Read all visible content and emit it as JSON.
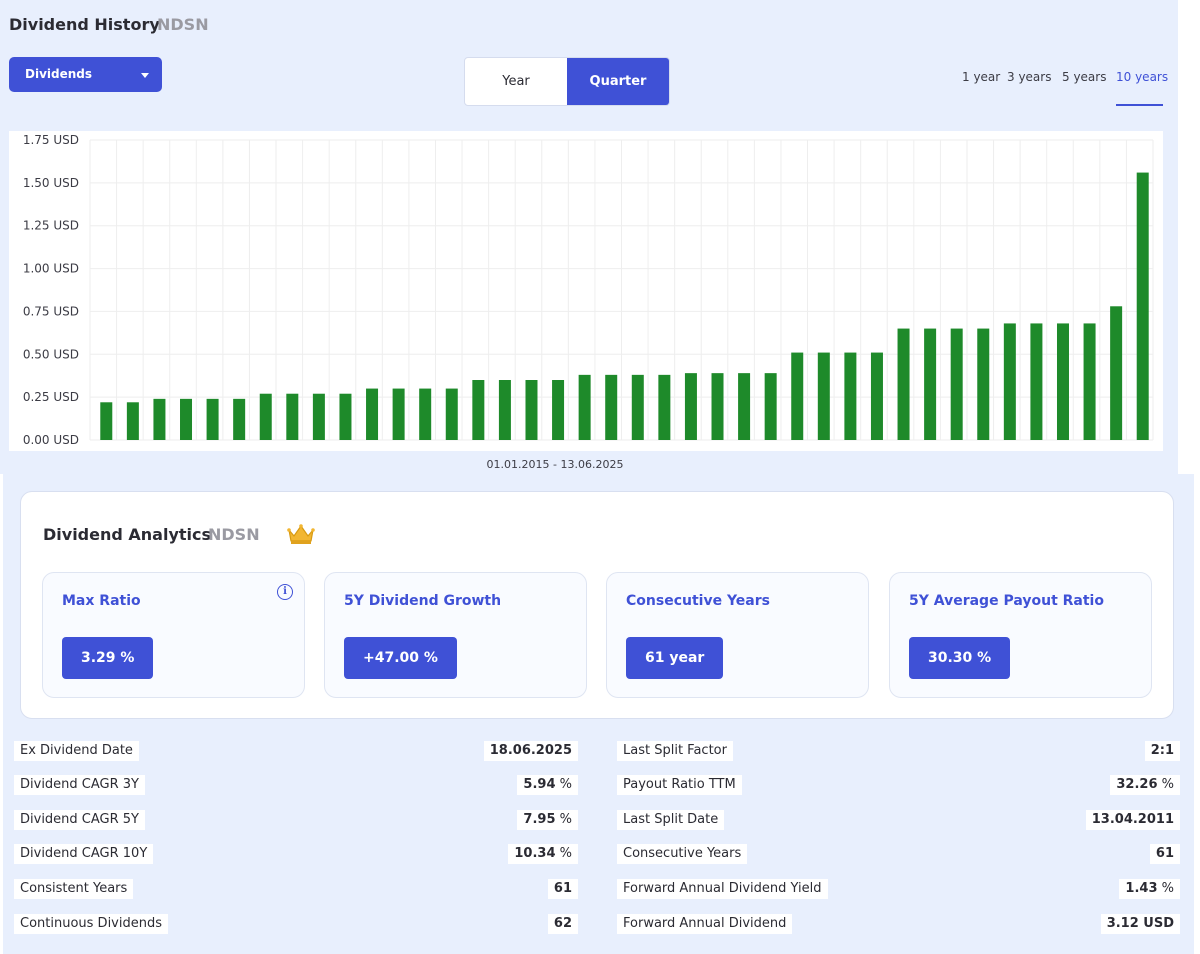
{
  "header": {
    "title": "Dividend History",
    "ticker": "NDSN"
  },
  "dropdown": {
    "label": "Dividends"
  },
  "period_toggle": {
    "options": [
      "Year",
      "Quarter"
    ],
    "selected": "Quarter"
  },
  "ranges": {
    "options": [
      "1 year",
      "3 years",
      "5 years",
      "10 years"
    ],
    "selected": "10 years"
  },
  "chart_data": {
    "type": "bar",
    "title": "",
    "xlabel": "01.01.2015 - 13.06.2025",
    "ylabel": "",
    "ylim": [
      0,
      1.75
    ],
    "yticks": [
      "0.00 USD",
      "0.25 USD",
      "0.50 USD",
      "0.75 USD",
      "1.00 USD",
      "1.25 USD",
      "1.50 USD",
      "1.75 USD"
    ],
    "grid": true,
    "bar_color": "#1e8a2a",
    "values": [
      0.22,
      0.22,
      0.24,
      0.24,
      0.24,
      0.24,
      0.27,
      0.27,
      0.27,
      0.27,
      0.3,
      0.3,
      0.3,
      0.3,
      0.35,
      0.35,
      0.35,
      0.35,
      0.38,
      0.38,
      0.38,
      0.38,
      0.39,
      0.39,
      0.39,
      0.39,
      0.51,
      0.51,
      0.51,
      0.51,
      0.65,
      0.65,
      0.65,
      0.65,
      0.68,
      0.68,
      0.68,
      0.68,
      0.78,
      1.56
    ]
  },
  "analytics": {
    "title": "Dividend Analytics",
    "ticker": "NDSN",
    "metrics": [
      {
        "label": "Max Ratio",
        "value": "3.29 %"
      },
      {
        "label": "5Y Dividend Growth",
        "value": "+47.00 %"
      },
      {
        "label": "Consecutive Years",
        "value": "61 year"
      },
      {
        "label": "5Y Average Payout Ratio",
        "value": "30.30 %"
      }
    ]
  },
  "stats_left": [
    {
      "label": "Ex Dividend Date",
      "value": "18.06.2025",
      "unit": ""
    },
    {
      "label": "Dividend CAGR 3Y",
      "value": "5.94",
      "unit": " %"
    },
    {
      "label": "Dividend CAGR 5Y",
      "value": "7.95",
      "unit": " %"
    },
    {
      "label": "Dividend CAGR 10Y",
      "value": "10.34",
      "unit": " %"
    },
    {
      "label": "Consistent Years",
      "value": "61",
      "unit": ""
    },
    {
      "label": "Continuous Dividends",
      "value": "62",
      "unit": ""
    }
  ],
  "stats_right": [
    {
      "label": "Last Split Factor",
      "value": "2:1",
      "unit": ""
    },
    {
      "label": "Payout Ratio TTM",
      "value": "32.26",
      "unit": " %"
    },
    {
      "label": "Last Split Date",
      "value": "13.04.2011",
      "unit": ""
    },
    {
      "label": "Consecutive Years",
      "value": "61",
      "unit": ""
    },
    {
      "label": "Forward Annual Dividend Yield",
      "value": "1.43",
      "unit": " %"
    },
    {
      "label": "Forward Annual Dividend",
      "value": "3.12 USD",
      "unit": ""
    }
  ]
}
